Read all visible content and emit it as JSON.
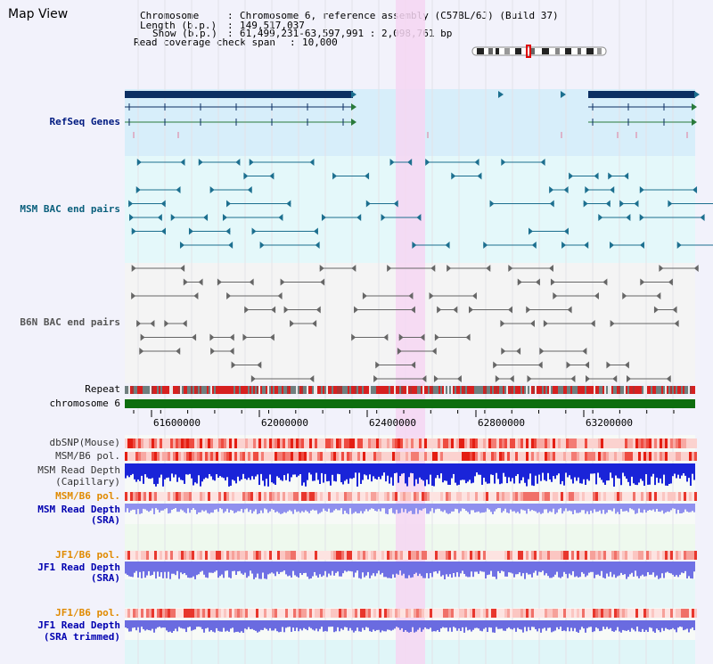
{
  "page_title": "Map View",
  "info": {
    "chromosome_key": "Chromosome",
    "chromosome_val": "Chromosome 6, reference assembly (C57BL/6J) (Build 37)",
    "length_key": "Length (b.p.)",
    "length_val": "149,517,037",
    "show_key": "Show (b.p.)",
    "show_val": "61,499,231-63,597,991 : 2,098,761 bp",
    "read_key": "Read coverage check span",
    "read_val": "10,000"
  },
  "tracks": {
    "refseq": "RefSeq Genes",
    "msm_bac": "MSM BAC end pairs",
    "b6n_bac": "B6N BAC end pairs",
    "repeat": "Repeat",
    "chromosome": "chromosome 6",
    "dbsnp": "dbSNP(Mouse)",
    "msm_b6_pol": "MSM/B6 pol.",
    "msm_read_depth_cap_1": "MSM Read Depth",
    "msm_read_depth_cap_2": "(Capillary)",
    "msm_b6_pol_sra": "MSM/B6 pol.",
    "msm_read_depth_sra_1": "MSM Read Depth",
    "msm_read_depth_sra_2": "(SRA)",
    "jf1_b6_pol": "JF1/B6 pol.",
    "jf1_read_depth_1": "JF1 Read Depth",
    "jf1_read_depth_2": "(SRA)",
    "jf1_b6_pol_trim": "JF1/B6 pol.",
    "jf1_read_depth_trim_1": "JF1 Read Depth",
    "jf1_read_depth_trim_2": "(SRA trimmed)"
  },
  "axis_ticks": [
    "61600000",
    "62000000",
    "62400000",
    "62800000",
    "63200000"
  ],
  "colors": {
    "background": "#f2f2fb",
    "refseq_band": "#d7eefa",
    "msm_band": "#e4f8fa",
    "highlight": "#f6d6f2",
    "refseq_gene": "#0c2f63",
    "msm_pair": "#1c6f8f",
    "b6n_pair": "#666666",
    "chromosome_bar": "#0e6e0e",
    "label_navy": "#001a80",
    "label_teal": "#0a5f7c",
    "label_orange": "#e08a00",
    "label_sra": "#0000b0"
  }
}
